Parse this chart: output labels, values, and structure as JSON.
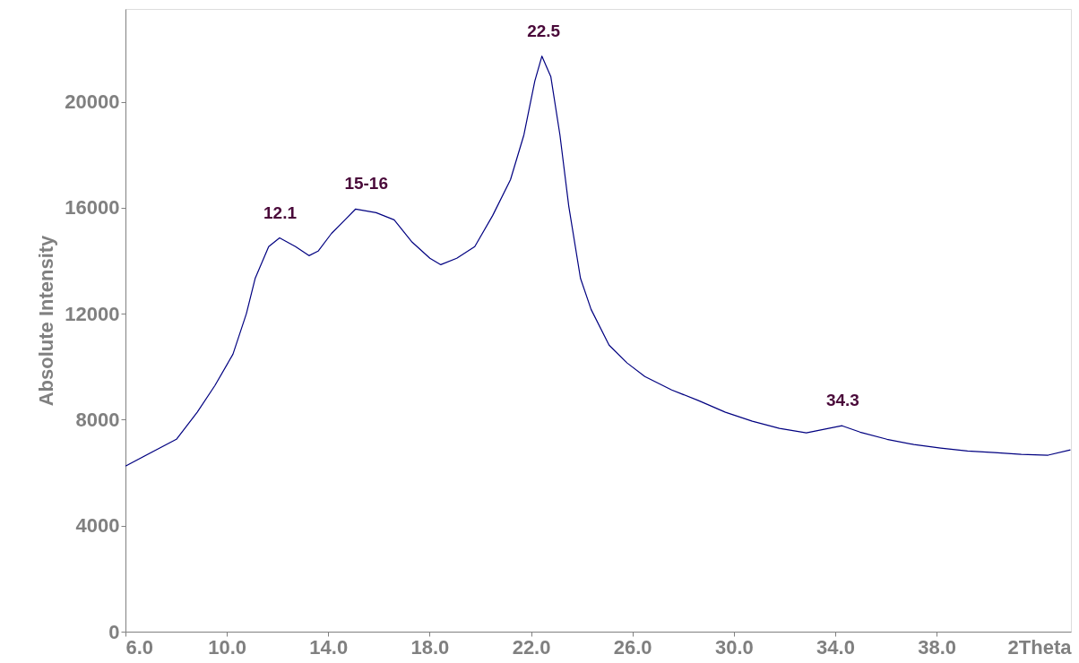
{
  "chart_data": {
    "type": "line",
    "ylabel": "Absolute Intensity",
    "xlim": [
      6,
      43.3
    ],
    "ylim": [
      0,
      23500
    ],
    "xticks": [
      {
        "value": 6,
        "label": "6.0"
      },
      {
        "value": 10,
        "label": "10.0"
      },
      {
        "value": 14,
        "label": "14.0"
      },
      {
        "value": 18,
        "label": "18.0"
      },
      {
        "value": 22,
        "label": "22.0"
      },
      {
        "value": 26,
        "label": "26.0"
      },
      {
        "value": 30,
        "label": "30.0"
      },
      {
        "value": 34,
        "label": "34.0"
      },
      {
        "value": 38,
        "label": "38.0"
      }
    ],
    "xlabel": "2Theta",
    "yticks": [
      0,
      4000,
      8000,
      12000,
      16000,
      20000
    ],
    "grid": false,
    "marker": "none",
    "line_style": "solid",
    "series": [
      {
        "color": "#000080",
        "x": [
          6.0,
          8.01,
          8.83,
          9.53,
          10.24,
          10.77,
          11.12,
          11.65,
          12.08,
          12.71,
          13.24,
          13.6,
          14.13,
          14.66,
          15.08,
          15.89,
          16.6,
          17.31,
          18.01,
          18.44,
          19.07,
          19.78,
          20.49,
          21.19,
          21.72,
          22.15,
          22.43,
          22.78,
          23.14,
          23.49,
          23.95,
          24.37,
          25.08,
          25.79,
          26.49,
          27.55,
          28.61,
          29.67,
          30.73,
          31.8,
          32.86,
          33.74,
          34.27,
          34.98,
          36.04,
          37.1,
          38.16,
          39.22,
          40.28,
          41.34,
          42.4,
          43.28
        ],
        "values": [
          6250,
          7260,
          8280,
          9290,
          10470,
          12000,
          13340,
          14530,
          14860,
          14530,
          14190,
          14360,
          15030,
          15540,
          15950,
          15810,
          15540,
          14700,
          14090,
          13850,
          14090,
          14530,
          15710,
          17060,
          18750,
          20780,
          21720,
          20950,
          18750,
          16050,
          13340,
          12160,
          10810,
          10140,
          9630,
          9120,
          8720,
          8280,
          7940,
          7670,
          7500,
          7670,
          7770,
          7530,
          7260,
          7060,
          6930,
          6820,
          6760,
          6690,
          6660,
          6860
        ]
      }
    ],
    "annotations": [
      {
        "text": "12.1",
        "x": 12.1,
        "y": 14860
      },
      {
        "text": "15-16",
        "x": 15.5,
        "y": 15950
      },
      {
        "text": "22.5",
        "x": 22.5,
        "y": 21720
      },
      {
        "text": "34.3",
        "x": 34.3,
        "y": 7770
      }
    ]
  }
}
